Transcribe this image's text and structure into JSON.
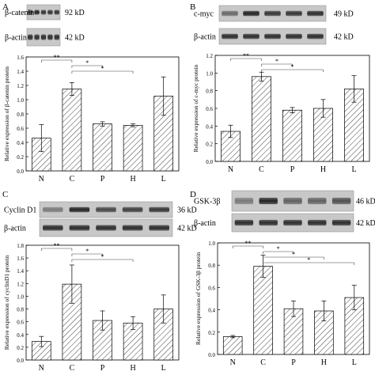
{
  "panels": [
    {
      "letter": "A",
      "blot_rows": [
        {
          "protein": "β-catenin",
          "kd": "92 kD"
        },
        {
          "protein": "β-actin",
          "kd": "42 kD"
        }
      ]
    },
    {
      "letter": "B",
      "blot_rows": [
        {
          "protein": "c-myc",
          "kd": "49 kD"
        },
        {
          "protein": "β-actin",
          "kd": "42 kD"
        }
      ]
    },
    {
      "letter": "C",
      "blot_rows": [
        {
          "protein": "Cyclin D1",
          "kd": "36 kD"
        },
        {
          "protein": "β-actin",
          "kd": "42 kD"
        }
      ]
    },
    {
      "letter": "D",
      "blot_rows": [
        {
          "protein": "GSK-3β",
          "kd": "46 kD"
        },
        {
          "protein": "β-actin",
          "kd": "42 kD"
        }
      ]
    }
  ],
  "chart_data": [
    {
      "type": "bar",
      "categories": [
        "N",
        "C",
        "P",
        "H",
        "L"
      ],
      "values": [
        0.46,
        1.15,
        0.66,
        0.64,
        1.05
      ],
      "errors": [
        0.19,
        0.09,
        0.03,
        0.02,
        0.27
      ],
      "ylabel": "Relative expression of β-catenin protein",
      "ylim": [
        0,
        1.6
      ],
      "yticks": [
        "0.0",
        "0.2",
        "0.4",
        "0.6",
        "0.8",
        "1.0",
        "1.2",
        "1.4",
        "1.6"
      ],
      "significance": [
        {
          "from": "N",
          "to": "C",
          "label": "**"
        },
        {
          "from": "C",
          "to": "P",
          "label": "*"
        },
        {
          "from": "C",
          "to": "H",
          "label": "*"
        }
      ]
    },
    {
      "type": "bar",
      "categories": [
        "N",
        "C",
        "P",
        "H",
        "L"
      ],
      "values": [
        0.34,
        0.96,
        0.58,
        0.6,
        0.82
      ],
      "errors": [
        0.07,
        0.05,
        0.03,
        0.1,
        0.15
      ],
      "ylabel": "Relative expression of c-myc protein",
      "ylim": [
        0,
        1.2
      ],
      "yticks": [
        "0.0",
        "0.2",
        "0.4",
        "0.6",
        "0.8",
        "1.0",
        "1.2"
      ],
      "significance": [
        {
          "from": "N",
          "to": "C",
          "label": "**"
        },
        {
          "from": "C",
          "to": "P",
          "label": "*"
        },
        {
          "from": "C",
          "to": "H",
          "label": "*"
        }
      ]
    },
    {
      "type": "bar",
      "categories": [
        "N",
        "C",
        "P",
        "H",
        "L"
      ],
      "values": [
        0.29,
        1.19,
        0.62,
        0.58,
        0.8
      ],
      "errors": [
        0.08,
        0.3,
        0.15,
        0.1,
        0.22
      ],
      "ylabel": "Relative expression of cyclinD1 protein",
      "ylim": [
        0,
        1.8
      ],
      "yticks": [
        "0.0",
        "0.2",
        "0.4",
        "0.6",
        "0.8",
        "1.0",
        "1.2",
        "1.4",
        "1.6",
        "1.8"
      ],
      "significance": [
        {
          "from": "N",
          "to": "C",
          "label": "**"
        },
        {
          "from": "C",
          "to": "P",
          "label": "*"
        },
        {
          "from": "C",
          "to": "H",
          "label": "*"
        }
      ]
    },
    {
      "type": "bar",
      "categories": [
        "N",
        "C",
        "P",
        "H",
        "L"
      ],
      "values": [
        0.16,
        0.79,
        0.41,
        0.39,
        0.51
      ],
      "errors": [
        0.01,
        0.1,
        0.07,
        0.09,
        0.11
      ],
      "ylabel": "Relative expression of GSK-3β protein",
      "ylim": [
        0,
        1.0
      ],
      "yticks": [
        "0.0",
        "0.2",
        "0.4",
        "0.6",
        "0.8",
        "1.0"
      ],
      "significance": [
        {
          "from": "N",
          "to": "C",
          "label": "**"
        },
        {
          "from": "C",
          "to": "P",
          "label": "*"
        },
        {
          "from": "C",
          "to": "H",
          "label": "*"
        },
        {
          "from": "C",
          "to": "L",
          "label": "*"
        }
      ]
    }
  ]
}
